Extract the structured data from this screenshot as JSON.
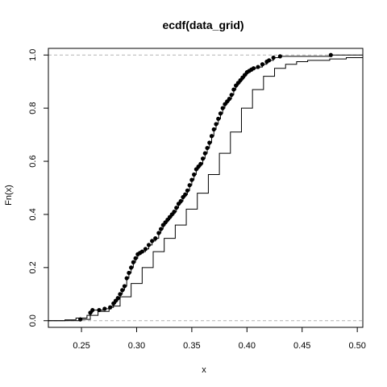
{
  "chart_data": {
    "type": "line",
    "title": "ecdf(data_grid)",
    "xlabel": "x",
    "ylabel": "Fn(x)",
    "xlim": [
      0.22,
      0.505
    ],
    "ylim": [
      -0.025,
      1.025
    ],
    "xticks": [
      0.25,
      0.3,
      0.35,
      0.4,
      0.45,
      0.5
    ],
    "xtick_labels": [
      "0.25",
      "0.30",
      "0.35",
      "0.40",
      "0.45",
      "0.50"
    ],
    "yticks": [
      0.0,
      0.2,
      0.4,
      0.6,
      0.8,
      1.0
    ],
    "ytick_labels": [
      "0.0",
      "0.2",
      "0.4",
      "0.6",
      "0.8",
      "1.0"
    ],
    "reference_lines_y": [
      0,
      1
    ],
    "series": [
      {
        "style": "step-points",
        "x": [
          0.249,
          0.258,
          0.26,
          0.266,
          0.271,
          0.276,
          0.279,
          0.281,
          0.283,
          0.285,
          0.287,
          0.289,
          0.291,
          0.293,
          0.295,
          0.297,
          0.299,
          0.301,
          0.303,
          0.305,
          0.308,
          0.311,
          0.314,
          0.317,
          0.32,
          0.322,
          0.324,
          0.326,
          0.328,
          0.33,
          0.332,
          0.334,
          0.336,
          0.338,
          0.34,
          0.342,
          0.344,
          0.346,
          0.348,
          0.35,
          0.352,
          0.354,
          0.356,
          0.358,
          0.36,
          0.362,
          0.364,
          0.366,
          0.368,
          0.37,
          0.372,
          0.374,
          0.376,
          0.378,
          0.38,
          0.382,
          0.384,
          0.386,
          0.388,
          0.39,
          0.392,
          0.394,
          0.396,
          0.398,
          0.4,
          0.402,
          0.404,
          0.406,
          0.41,
          0.414,
          0.418,
          0.42,
          0.424,
          0.43,
          0.476
        ],
        "y": [
          0.005,
          0.03,
          0.04,
          0.04,
          0.045,
          0.05,
          0.065,
          0.075,
          0.085,
          0.1,
          0.115,
          0.13,
          0.16,
          0.18,
          0.2,
          0.22,
          0.235,
          0.25,
          0.255,
          0.26,
          0.27,
          0.285,
          0.3,
          0.31,
          0.33,
          0.345,
          0.36,
          0.37,
          0.38,
          0.39,
          0.4,
          0.41,
          0.425,
          0.44,
          0.45,
          0.465,
          0.475,
          0.49,
          0.51,
          0.53,
          0.55,
          0.57,
          0.58,
          0.59,
          0.61,
          0.63,
          0.65,
          0.67,
          0.695,
          0.72,
          0.74,
          0.76,
          0.78,
          0.8,
          0.815,
          0.825,
          0.835,
          0.85,
          0.87,
          0.885,
          0.895,
          0.905,
          0.915,
          0.925,
          0.935,
          0.94,
          0.945,
          0.95,
          0.955,
          0.965,
          0.975,
          0.98,
          0.99,
          0.995,
          1.0
        ]
      },
      {
        "style": "step-line",
        "x": [
          0.22,
          0.235,
          0.245,
          0.255,
          0.265,
          0.275,
          0.285,
          0.295,
          0.305,
          0.315,
          0.325,
          0.335,
          0.345,
          0.355,
          0.365,
          0.375,
          0.385,
          0.395,
          0.405,
          0.415,
          0.425,
          0.435,
          0.445,
          0.455,
          0.475,
          0.49,
          0.505
        ],
        "y": [
          0.0,
          0.003,
          0.01,
          0.02,
          0.035,
          0.055,
          0.09,
          0.14,
          0.2,
          0.26,
          0.31,
          0.36,
          0.42,
          0.48,
          0.55,
          0.63,
          0.71,
          0.8,
          0.87,
          0.92,
          0.95,
          0.965,
          0.975,
          0.98,
          0.985,
          0.99,
          0.99
        ]
      }
    ]
  }
}
